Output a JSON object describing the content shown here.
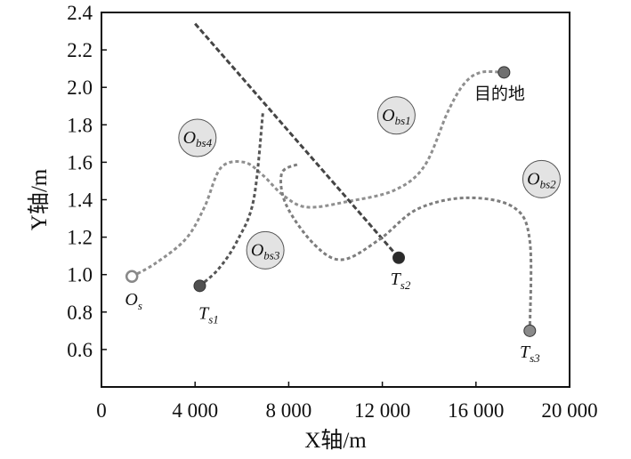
{
  "chart_data": {
    "type": "line",
    "xlabel": "X轴/m",
    "ylabel": "Y轴/m",
    "xlim": [
      0,
      20000
    ],
    "ylim": [
      0.4,
      2.4
    ],
    "x_ticks": [
      0,
      4000,
      8000,
      12000,
      16000,
      20000
    ],
    "x_tick_labels": [
      "0",
      "4 000",
      "8 000",
      "12 000",
      "16 000",
      "20 000"
    ],
    "y_ticks": [
      0.6,
      0.8,
      1.0,
      1.2,
      1.4,
      1.6,
      1.8,
      2.0,
      2.2,
      2.4
    ],
    "y_tick_labels": [
      "0.6",
      "0.8",
      "1.0",
      "1.2",
      "1.4",
      "1.6",
      "1.8",
      "2.0",
      "2.2",
      "2.4"
    ],
    "grid": false,
    "series": [
      {
        "name": "",
        "color": "#8f8f8f",
        "style": "dotted",
        "points": [
          [
            1300,
            0.99
          ],
          [
            2300,
            1.06
          ],
          [
            3600,
            1.19
          ],
          [
            4400,
            1.36
          ],
          [
            5100,
            1.57
          ],
          [
            6100,
            1.6
          ],
          [
            6900,
            1.53
          ],
          [
            7800,
            1.42
          ],
          [
            8800,
            1.36
          ],
          [
            10500,
            1.39
          ],
          [
            12500,
            1.45
          ],
          [
            13800,
            1.58
          ],
          [
            14800,
            1.87
          ],
          [
            15500,
            2.02
          ],
          [
            16200,
            2.08
          ],
          [
            17200,
            2.08
          ]
        ]
      },
      {
        "name": "",
        "color": "#555555",
        "style": "dotted",
        "points": [
          [
            4200,
            0.94
          ],
          [
            5000,
            1.03
          ],
          [
            5800,
            1.18
          ],
          [
            6500,
            1.4
          ],
          [
            6900,
            1.87
          ]
        ]
      },
      {
        "name": "",
        "color": "#454545",
        "style": "dashed",
        "points": [
          [
            4000,
            2.34
          ],
          [
            12700,
            1.09
          ]
        ]
      },
      {
        "name": "",
        "color": "#7d7d7d",
        "style": "dotted",
        "points": [
          [
            18300,
            0.7
          ],
          [
            18300,
            1.18
          ],
          [
            17600,
            1.36
          ],
          [
            15600,
            1.41
          ],
          [
            13500,
            1.35
          ],
          [
            11900,
            1.19
          ],
          [
            10300,
            1.08
          ],
          [
            9100,
            1.16
          ],
          [
            7900,
            1.37
          ],
          [
            7700,
            1.54
          ],
          [
            8400,
            1.59
          ]
        ]
      }
    ],
    "markers": [
      {
        "label": "O",
        "sub": "s",
        "x": 1300,
        "y": 0.99,
        "style": "hollow"
      },
      {
        "label": "T",
        "sub": "s1",
        "x": 4200,
        "y": 0.94,
        "style": "filled",
        "color": "#505050"
      },
      {
        "label": "T",
        "sub": "s2",
        "x": 12700,
        "y": 1.09,
        "style": "filled",
        "color": "#2a2a2a"
      },
      {
        "label": "T",
        "sub": "s3",
        "x": 18300,
        "y": 0.7,
        "style": "filled",
        "color": "#8a8a8a"
      },
      {
        "label": "目的地",
        "sub": "",
        "x": 17200,
        "y": 2.08,
        "style": "filled",
        "color": "#707070"
      }
    ],
    "obstacles": [
      {
        "label": "O",
        "sub": "bs1",
        "x": 12600,
        "y": 1.85
      },
      {
        "label": "O",
        "sub": "bs2",
        "x": 18800,
        "y": 1.51
      },
      {
        "label": "O",
        "sub": "bs3",
        "x": 7000,
        "y": 1.13
      },
      {
        "label": "O",
        "sub": "bs4",
        "x": 4100,
        "y": 1.73
      }
    ]
  }
}
